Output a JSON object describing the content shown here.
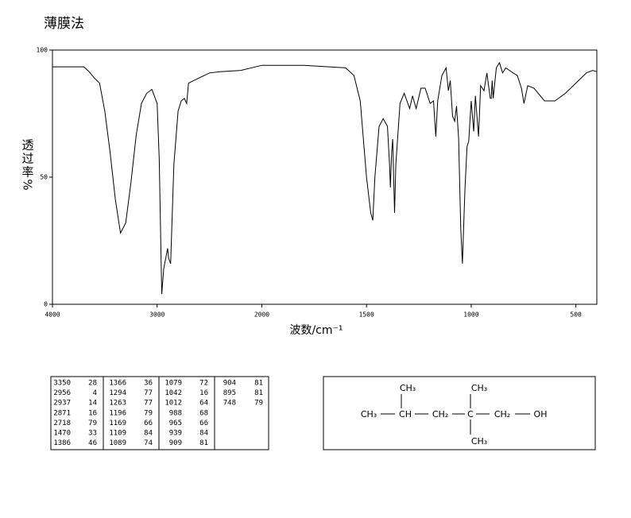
{
  "chart_data": {
    "type": "line",
    "title": "薄膜法",
    "xlabel": "波数/cm⁻¹",
    "ylabel": "透过率%",
    "xlim": [
      4000,
      400
    ],
    "ylim": [
      0,
      100
    ],
    "xticks": [
      4000,
      3000,
      2000,
      1500,
      1000,
      500
    ],
    "yticks": [
      0,
      50,
      100
    ],
    "x_expansion": {
      "below": 2000,
      "factor": 2
    },
    "color": "#000000",
    "x": [
      4000,
      3700,
      3650,
      3600,
      3550,
      3500,
      3450,
      3400,
      3350,
      3300,
      3250,
      3200,
      3150,
      3100,
      3050,
      3000,
      2980,
      2956,
      2937,
      2900,
      2890,
      2871,
      2860,
      2840,
      2800,
      2770,
      2740,
      2718,
      2700,
      2600,
      2500,
      2400,
      2200,
      2000,
      1800,
      1600,
      1560,
      1530,
      1500,
      1480,
      1470,
      1460,
      1440,
      1420,
      1400,
      1390,
      1386,
      1380,
      1375,
      1366,
      1360,
      1340,
      1320,
      1294,
      1280,
      1263,
      1240,
      1220,
      1196,
      1180,
      1169,
      1160,
      1140,
      1120,
      1109,
      1100,
      1089,
      1079,
      1070,
      1060,
      1050,
      1042,
      1030,
      1020,
      1012,
      1000,
      988,
      980,
      965,
      955,
      939,
      925,
      909,
      904,
      900,
      895,
      880,
      865,
      850,
      835,
      800,
      780,
      760,
      748,
      730,
      700,
      650,
      600,
      550,
      500,
      450,
      420,
      400
    ],
    "values": [
      93.4,
      93.4,
      91.5,
      89,
      87,
      76,
      60,
      41.5,
      28,
      32,
      48,
      66.5,
      79,
      83,
      84.5,
      79,
      57,
      4,
      14,
      22,
      18,
      16,
      30,
      55,
      76,
      80,
      81,
      79,
      87,
      89,
      91,
      91.5,
      92,
      94,
      94,
      93,
      90,
      80,
      50,
      36,
      33,
      50,
      70,
      73,
      70,
      55,
      46,
      60,
      65,
      36,
      55,
      79,
      83,
      77,
      82,
      77,
      85,
      85,
      79,
      80,
      66,
      80,
      90,
      93,
      84,
      88,
      74,
      72,
      78,
      65,
      30,
      16,
      45,
      62,
      64,
      80,
      68,
      82,
      66,
      86,
      84,
      91,
      81,
      81,
      88,
      81,
      93,
      95,
      91,
      93,
      91,
      90,
      85,
      79,
      86,
      85,
      80,
      80,
      83,
      87,
      91,
      92,
      91.5
    ]
  },
  "peak_table": [
    [
      [
        3350,
        28
      ],
      [
        2956,
        4
      ],
      [
        2937,
        14
      ],
      [
        2871,
        16
      ],
      [
        2718,
        79
      ],
      [
        1470,
        33
      ],
      [
        1386,
        46
      ]
    ],
    [
      [
        1366,
        36
      ],
      [
        1294,
        77
      ],
      [
        1263,
        77
      ],
      [
        1196,
        79
      ],
      [
        1169,
        66
      ],
      [
        1109,
        84
      ],
      [
        1089,
        74
      ]
    ],
    [
      [
        1079,
        72
      ],
      [
        1042,
        16
      ],
      [
        1012,
        64
      ],
      [
        988,
        68
      ],
      [
        965,
        66
      ],
      [
        939,
        84
      ],
      [
        909,
        81
      ]
    ],
    [
      [
        904,
        81
      ],
      [
        895,
        81
      ],
      [
        748,
        79
      ]
    ]
  ],
  "structure": {
    "chain": [
      "CH₃",
      "CH",
      "CH₂",
      "C",
      "CH₂",
      "OH"
    ],
    "branch_ch": "CH₃",
    "branch_c_top": "CH₃",
    "branch_c_bottom": "CH₃"
  }
}
